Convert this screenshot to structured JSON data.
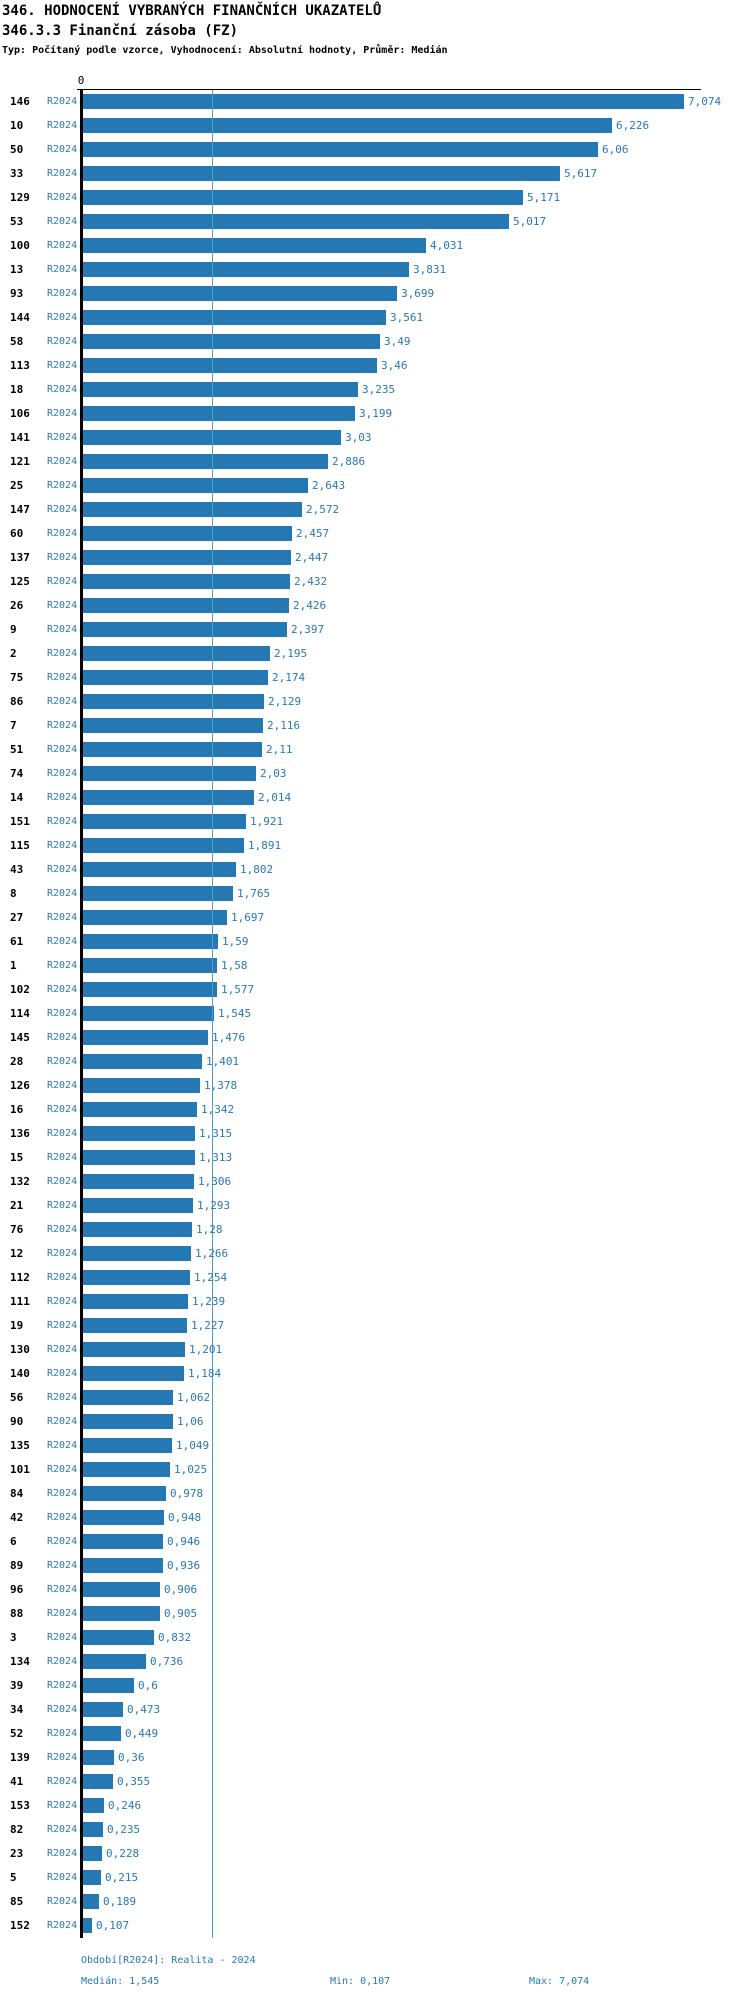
{
  "header": {
    "title": "346. HODNOCENÍ VYBRANÝCH FINANČNÍCH UKAZATELŮ",
    "subtitle": "346.3.3 Finanční zásoba (FZ)",
    "type_line": "Typ: Počítaný podle vzorce, Vyhodnocení: Absolutní hodnoty, Průměr: Medián"
  },
  "axis": {
    "zero_label": "0"
  },
  "colors": {
    "bar": "#2478b4",
    "value_label": "#2878b4",
    "median_line": "#4f9cd0",
    "axis": "#000000"
  },
  "chart_data": {
    "type": "bar",
    "orientation": "horizontal",
    "series_label": "R2024",
    "xlim": [
      0,
      7.074
    ],
    "median": 1.545,
    "grid": false,
    "categories": [
      "146",
      "10",
      "50",
      "33",
      "129",
      "53",
      "100",
      "13",
      "93",
      "144",
      "58",
      "113",
      "18",
      "106",
      "141",
      "121",
      "25",
      "147",
      "60",
      "137",
      "125",
      "26",
      "9",
      "2",
      "75",
      "86",
      "7",
      "51",
      "74",
      "14",
      "151",
      "115",
      "43",
      "8",
      "27",
      "61",
      "1",
      "102",
      "114",
      "145",
      "28",
      "126",
      "16",
      "136",
      "15",
      "132",
      "21",
      "76",
      "12",
      "112",
      "111",
      "19",
      "130",
      "140",
      "56",
      "90",
      "135",
      "101",
      "84",
      "42",
      "6",
      "89",
      "96",
      "88",
      "3",
      "134",
      "39",
      "34",
      "52",
      "139",
      "41",
      "153",
      "82",
      "23",
      "5",
      "85",
      "152"
    ],
    "values": [
      7.074,
      6.226,
      6.06,
      5.617,
      5.171,
      5.017,
      4.031,
      3.831,
      3.699,
      3.561,
      3.49,
      3.46,
      3.235,
      3.199,
      3.03,
      2.886,
      2.643,
      2.572,
      2.457,
      2.447,
      2.432,
      2.426,
      2.397,
      2.195,
      2.174,
      2.129,
      2.116,
      2.11,
      2.03,
      2.014,
      1.921,
      1.891,
      1.802,
      1.765,
      1.697,
      1.59,
      1.58,
      1.577,
      1.545,
      1.476,
      1.401,
      1.378,
      1.342,
      1.315,
      1.313,
      1.306,
      1.293,
      1.28,
      1.266,
      1.254,
      1.239,
      1.227,
      1.201,
      1.184,
      1.062,
      1.06,
      1.049,
      1.025,
      0.978,
      0.948,
      0.946,
      0.936,
      0.906,
      0.905,
      0.832,
      0.736,
      0.6,
      0.473,
      0.449,
      0.36,
      0.355,
      0.246,
      0.235,
      0.228,
      0.215,
      0.189,
      0.107
    ],
    "value_labels": [
      "7,074",
      "6,226",
      "6,06",
      "5,617",
      "5,171",
      "5,017",
      "4,031",
      "3,831",
      "3,699",
      "3,561",
      "3,49",
      "3,46",
      "3,235",
      "3,199",
      "3,03",
      "2,886",
      "2,643",
      "2,572",
      "2,457",
      "2,447",
      "2,432",
      "2,426",
      "2,397",
      "2,195",
      "2,174",
      "2,129",
      "2,116",
      "2,11",
      "2,03",
      "2,014",
      "1,921",
      "1,891",
      "1,802",
      "1,765",
      "1,697",
      "1,59",
      "1,58",
      "1,577",
      "1,545",
      "1,476",
      "1,401",
      "1,378",
      "1,342",
      "1,315",
      "1,313",
      "1,306",
      "1,293",
      "1,28",
      "1,266",
      "1,254",
      "1,239",
      "1,227",
      "1,201",
      "1,184",
      "1,062",
      "1,06",
      "1,049",
      "1,025",
      "0,978",
      "0,948",
      "0,946",
      "0,936",
      "0,906",
      "0,905",
      "0,832",
      "0,736",
      "0,6",
      "0,473",
      "0,449",
      "0,36",
      "0,355",
      "0,246",
      "0,235",
      "0,228",
      "0,215",
      "0,189",
      "0,107"
    ],
    "title": "346.3.3 Finanční zásoba (FZ)"
  },
  "footer": {
    "period": "Období[R2024]: Realita - 2024",
    "median": "Medián: 1,545",
    "min": "Min: 0,107",
    "max": "Max: 7,074"
  }
}
